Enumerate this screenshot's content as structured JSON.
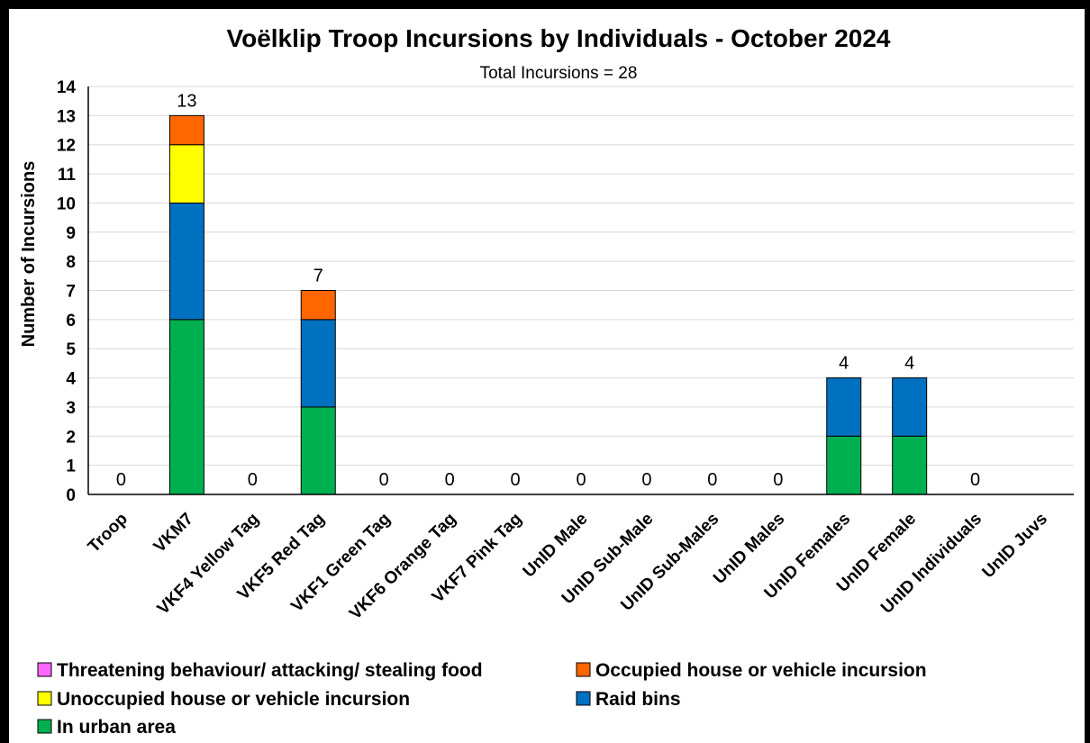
{
  "chart_data": {
    "type": "bar",
    "stacked": true,
    "title": "Voëlklip Troop Incursions by Individuals - October 2024",
    "subtitle": "Total Incursions = 28",
    "ylabel": "Number of Incursions",
    "xlabel": "",
    "ylim": [
      0,
      14
    ],
    "yticks": [
      0,
      1,
      2,
      3,
      4,
      5,
      6,
      7,
      8,
      9,
      10,
      11,
      12,
      13,
      14
    ],
    "grid": true,
    "legend_position": "bottom",
    "categories": [
      "Troop",
      "VKM7",
      "VKF4 Yellow Tag",
      "VKF5 Red Tag",
      "VKF1 Green Tag",
      "VKF6 Orange Tag",
      "VKF7 Pink Tag",
      "UnID Male",
      "UnID Sub-Male",
      "UnID Sub-Males",
      "UnID Males",
      "UnID Females",
      "UnID Female",
      "UnID Individuals",
      "UnID Juvs"
    ],
    "series": [
      {
        "name": "In urban area",
        "color": "#00b050",
        "values": [
          0,
          6,
          0,
          3,
          0,
          0,
          0,
          0,
          0,
          0,
          0,
          2,
          2,
          0,
          0
        ]
      },
      {
        "name": "Raid bins",
        "color": "#0070c0",
        "values": [
          0,
          4,
          0,
          3,
          0,
          0,
          0,
          0,
          0,
          0,
          0,
          2,
          2,
          0,
          0
        ]
      },
      {
        "name": "Unoccupied house or vehicle incursion",
        "color": "#ffff00",
        "values": [
          0,
          2,
          0,
          0,
          0,
          0,
          0,
          0,
          0,
          0,
          0,
          0,
          0,
          0,
          0
        ]
      },
      {
        "name": "Occupied house or vehicle incursion",
        "color": "#ff6600",
        "values": [
          0,
          1,
          0,
          1,
          0,
          0,
          0,
          0,
          0,
          0,
          0,
          0,
          0,
          0,
          0
        ]
      },
      {
        "name": "Threatening behaviour/ attacking/ stealing food",
        "color": "#ff66ff",
        "values": [
          0,
          0,
          0,
          0,
          0,
          0,
          0,
          0,
          0,
          0,
          0,
          0,
          0,
          0,
          0
        ]
      }
    ],
    "total_labels": [
      "0",
      "13",
      "0",
      "7",
      "0",
      "0",
      "0",
      "0",
      "0",
      "0",
      "0",
      "4",
      "4",
      "0",
      ""
    ],
    "legend": [
      {
        "name": "Threatening behaviour/ attacking/ stealing food",
        "color": "#ff66ff"
      },
      {
        "name": "Occupied house or vehicle incursion",
        "color": "#ff6600"
      },
      {
        "name": "Unoccupied house or vehicle incursion",
        "color": "#ffff00"
      },
      {
        "name": "Raid bins",
        "color": "#0070c0"
      },
      {
        "name": "In urban area",
        "color": "#00b050"
      }
    ]
  }
}
